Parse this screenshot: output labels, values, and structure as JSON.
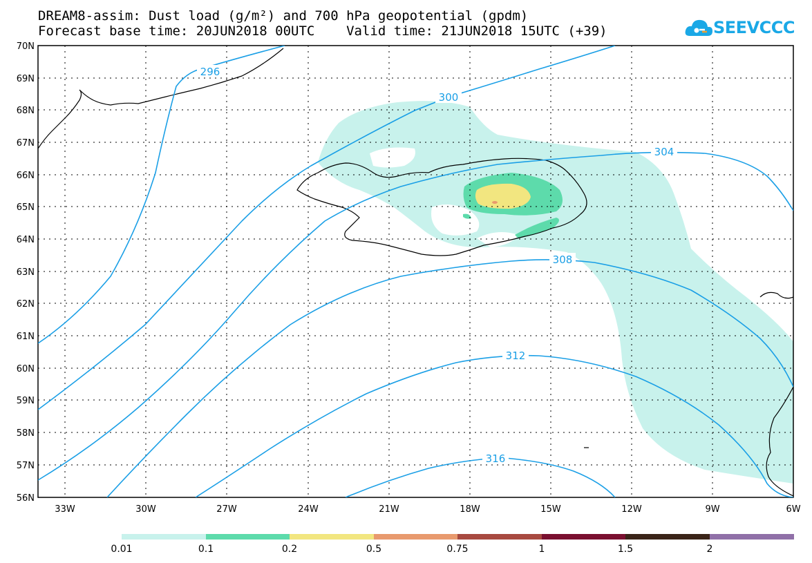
{
  "header": {
    "title_line1": "DREAM8-assim: Dust load (g/m²) and 700 hPa geopotential (gpdm)",
    "title_line2": "Forecast base time: 20JUN2018 00UTC    Valid time: 21JUN2018 15UTC (+39)"
  },
  "logo": {
    "text": "SEEVCCC"
  },
  "map": {
    "lat_labels": [
      "70N",
      "69N",
      "68N",
      "67N",
      "66N",
      "65N",
      "64N",
      "63N",
      "62N",
      "61N",
      "60N",
      "59N",
      "58N",
      "57N",
      "56N"
    ],
    "lon_labels": [
      "33W",
      "30W",
      "27W",
      "24W",
      "21W",
      "18W",
      "15W",
      "12W",
      "9W",
      "6W"
    ],
    "contours": [
      "296",
      "300",
      "304",
      "308",
      "312",
      "316"
    ],
    "colors": {
      "contour": "#1a9fe6",
      "dust_lv1": "#c8f2ec",
      "dust_lv2": "#5ddbab",
      "dust_lv3": "#f2e680",
      "dust_lv4": "#e89a6e"
    }
  },
  "colorbar": {
    "labels": [
      "0.01",
      "0.1",
      "0.2",
      "0.5",
      "0.75",
      "1",
      "1.5",
      "2"
    ],
    "colors": [
      "#c8f2ec",
      "#5ddbab",
      "#f2e680",
      "#e89a6e",
      "#a84a40",
      "#7a1030",
      "#3a2418",
      "#9070a8"
    ]
  }
}
